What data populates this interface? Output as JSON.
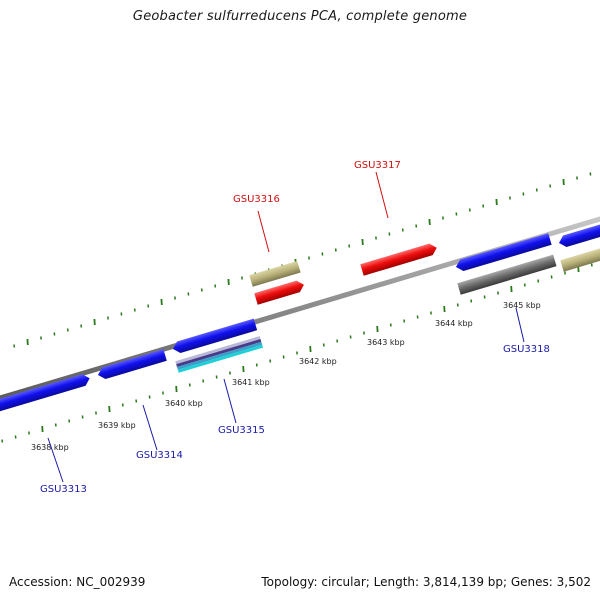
{
  "title": "Geobacter sulfurreducens PCA, complete genome",
  "accession": "Accession: NC_002939",
  "summary": "Topology: circular; Length: 3,814,139 bp; Genes: 3,502",
  "colors": {
    "backbone": "#8a8a8a",
    "tick": "#2a7a1a",
    "forward_label": "#d01010",
    "reverse_label": "#1a1aa8",
    "cds_blue": "#1414e6",
    "cds_red": "#ee0d0d",
    "cds_khaki": "#b8b078",
    "cds_gray": "#6a6a6a"
  },
  "scale_ticks": [
    {
      "label": "3638 kbp"
    },
    {
      "label": "3639 kbp"
    },
    {
      "label": "3640 kbp"
    },
    {
      "label": "3641 kbp"
    },
    {
      "label": "3642 kbp"
    },
    {
      "label": "3643 kbp"
    },
    {
      "label": "3644 kbp"
    },
    {
      "label": "3645 kbp"
    }
  ],
  "gene_labels": {
    "GSU3313": "GSU3313",
    "GSU3314": "GSU3314",
    "GSU3315": "GSU3315",
    "GSU3316": "GSU3316",
    "GSU3317": "GSU3317",
    "GSU3318": "GSU3318"
  }
}
